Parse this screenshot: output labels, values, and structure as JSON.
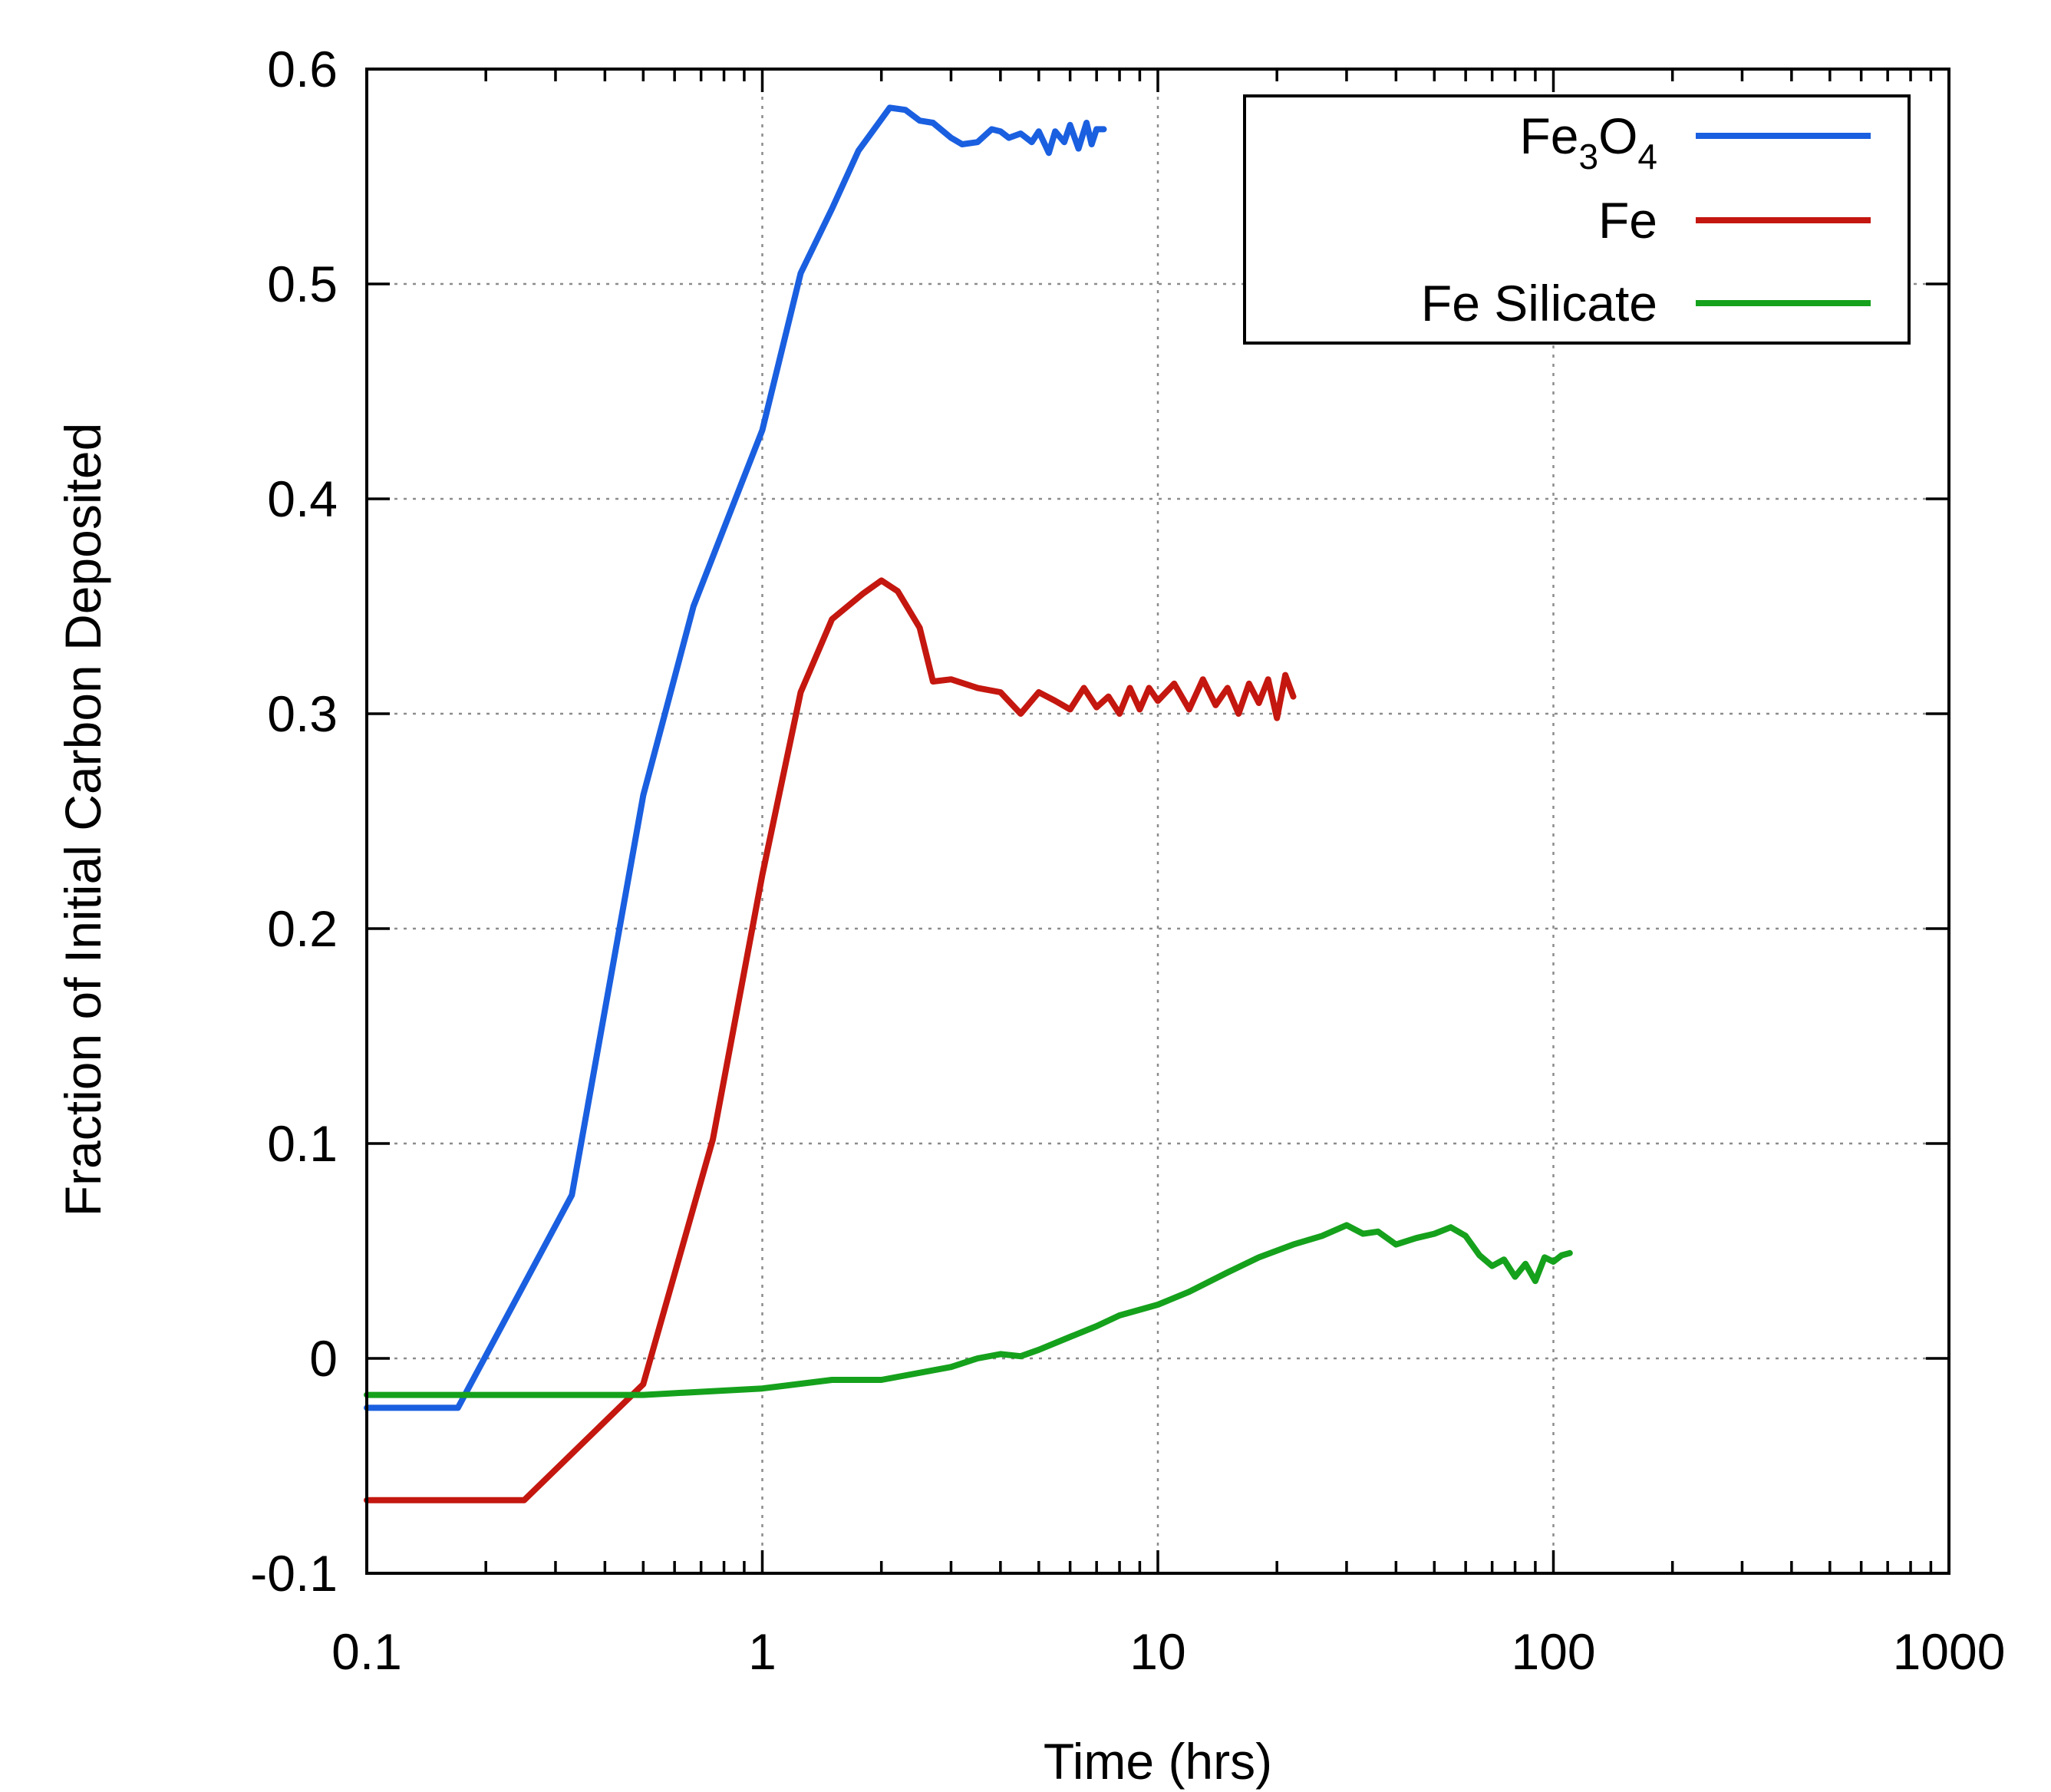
{
  "chart_data": {
    "type": "line",
    "title": "",
    "xlabel": "Time (hrs)",
    "ylabel": "Fraction of Initial Carbon Deposited",
    "xscale": "log",
    "xlim": [
      0.1,
      1000
    ],
    "ylim": [
      -0.1,
      0.6
    ],
    "grid": true,
    "legend_position": "top-right",
    "x_ticks": [
      {
        "value": 0.1,
        "label": "0.1"
      },
      {
        "value": 1,
        "label": "1"
      },
      {
        "value": 10,
        "label": "10"
      },
      {
        "value": 100,
        "label": "100"
      },
      {
        "value": 1000,
        "label": "1000"
      }
    ],
    "y_ticks": [
      {
        "value": -0.1,
        "label": "-0.1"
      },
      {
        "value": 0,
        "label": "0"
      },
      {
        "value": 0.1,
        "label": "0.1"
      },
      {
        "value": 0.2,
        "label": "0.2"
      },
      {
        "value": 0.3,
        "label": "0.3"
      },
      {
        "value": 0.4,
        "label": "0.4"
      },
      {
        "value": 0.5,
        "label": "0.5"
      },
      {
        "value": 0.6,
        "label": "0.6"
      }
    ],
    "series": [
      {
        "name": "Fe3O4",
        "legend_base": "Fe",
        "legend_sub1": "3",
        "legend_mid": "O",
        "legend_sub2": "4",
        "color": "#1a5fe0",
        "x": [
          0.1,
          0.17,
          0.33,
          0.5,
          0.67,
          1.0,
          1.25,
          1.5,
          1.75,
          2.1,
          2.3,
          2.5,
          2.7,
          3.0,
          3.2,
          3.5,
          3.8,
          4.0,
          4.2,
          4.5,
          4.8,
          5.0,
          5.3,
          5.5,
          5.8,
          6.0,
          6.3,
          6.6,
          6.8,
          7.0,
          7.3
        ],
        "y": [
          -0.023,
          -0.023,
          0.076,
          0.262,
          0.35,
          0.432,
          0.505,
          0.535,
          0.562,
          0.582,
          0.581,
          0.576,
          0.575,
          0.568,
          0.565,
          0.566,
          0.572,
          0.571,
          0.568,
          0.57,
          0.566,
          0.571,
          0.561,
          0.571,
          0.566,
          0.574,
          0.563,
          0.575,
          0.565,
          0.572,
          0.572
        ]
      },
      {
        "name": "Fe",
        "color": "#c4170f",
        "x": [
          0.1,
          0.25,
          0.5,
          0.75,
          1.0,
          1.25,
          1.5,
          1.8,
          2.0,
          2.2,
          2.5,
          2.7,
          3.0,
          3.5,
          4.0,
          4.5,
          5.0,
          5.5,
          6.0,
          6.5,
          7.0,
          7.5,
          8.0,
          8.5,
          9.0,
          9.5,
          10,
          11,
          12,
          13,
          14,
          15,
          16,
          17,
          18,
          19,
          20,
          21,
          22
        ],
        "y": [
          -0.066,
          -0.066,
          -0.012,
          0.102,
          0.225,
          0.31,
          0.344,
          0.356,
          0.362,
          0.357,
          0.34,
          0.315,
          0.316,
          0.312,
          0.31,
          0.3,
          0.31,
          0.306,
          0.302,
          0.312,
          0.303,
          0.308,
          0.3,
          0.312,
          0.302,
          0.312,
          0.306,
          0.314,
          0.302,
          0.316,
          0.304,
          0.312,
          0.3,
          0.314,
          0.305,
          0.316,
          0.298,
          0.318,
          0.308
        ]
      },
      {
        "name": "Fe Silicate",
        "color": "#15a11c",
        "x": [
          0.1,
          0.5,
          1.0,
          1.5,
          2.0,
          3.0,
          3.5,
          4.0,
          4.5,
          5.0,
          6.0,
          7.0,
          8.0,
          10,
          12,
          15,
          18,
          22,
          26,
          30,
          33,
          36,
          40,
          45,
          50,
          55,
          60,
          65,
          70,
          75,
          80,
          85,
          90,
          95,
          100,
          105,
          110
        ],
        "y": [
          -0.017,
          -0.017,
          -0.014,
          -0.01,
          -0.01,
          -0.004,
          0.0,
          0.002,
          0.001,
          0.004,
          0.01,
          0.015,
          0.02,
          0.025,
          0.031,
          0.04,
          0.047,
          0.053,
          0.057,
          0.062,
          0.058,
          0.059,
          0.053,
          0.056,
          0.058,
          0.061,
          0.057,
          0.048,
          0.043,
          0.046,
          0.038,
          0.044,
          0.036,
          0.047,
          0.045,
          0.048,
          0.049
        ]
      }
    ]
  }
}
